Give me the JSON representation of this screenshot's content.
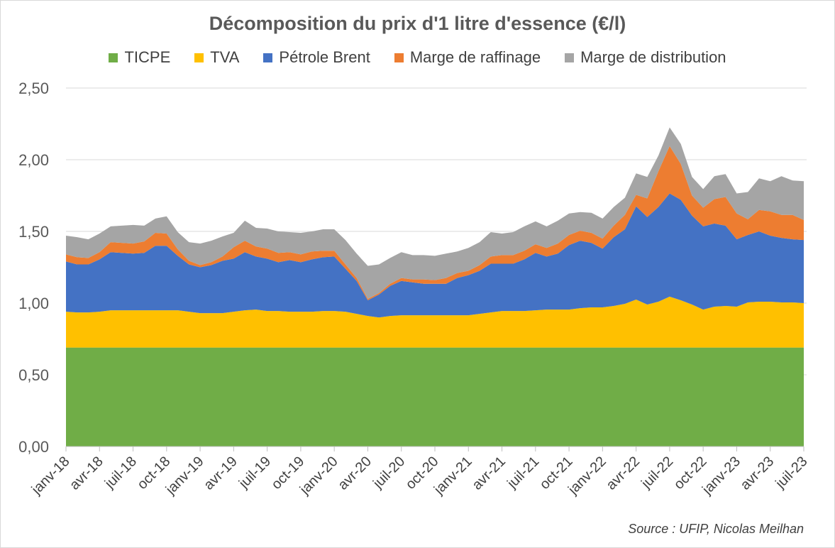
{
  "chart_data": {
    "type": "area",
    "stacked": true,
    "title": "Décomposition du prix d'1 litre d'essence (€/l)",
    "source": "Source : UFIP, Nicolas Meilhan",
    "ylim": [
      0,
      2.5
    ],
    "yticks": [
      "0,00",
      "0,50",
      "1,00",
      "1,50",
      "2,00",
      "2,50"
    ],
    "grid": true,
    "legend_position": "top",
    "x_labels": [
      "janv-18",
      "avr-18",
      "juil-18",
      "oct-18",
      "janv-19",
      "avr-19",
      "juil-19",
      "oct-19",
      "janv-20",
      "avr-20",
      "juil-20",
      "oct-20",
      "janv-21",
      "avr-21",
      "juil-21",
      "oct-21",
      "janv-22",
      "avr-22",
      "juil-22",
      "oct-22",
      "janv-23",
      "avr-23",
      "juil-23"
    ],
    "x": [
      "2018-01",
      "2018-02",
      "2018-03",
      "2018-04",
      "2018-05",
      "2018-06",
      "2018-07",
      "2018-08",
      "2018-09",
      "2018-10",
      "2018-11",
      "2018-12",
      "2019-01",
      "2019-02",
      "2019-03",
      "2019-04",
      "2019-05",
      "2019-06",
      "2019-07",
      "2019-08",
      "2019-09",
      "2019-10",
      "2019-11",
      "2019-12",
      "2020-01",
      "2020-02",
      "2020-03",
      "2020-04",
      "2020-05",
      "2020-06",
      "2020-07",
      "2020-08",
      "2020-09",
      "2020-10",
      "2020-11",
      "2020-12",
      "2021-01",
      "2021-02",
      "2021-03",
      "2021-04",
      "2021-05",
      "2021-06",
      "2021-07",
      "2021-08",
      "2021-09",
      "2021-10",
      "2021-11",
      "2021-12",
      "2022-01",
      "2022-02",
      "2022-03",
      "2022-04",
      "2022-05",
      "2022-06",
      "2022-07",
      "2022-08",
      "2022-09",
      "2022-10",
      "2022-11",
      "2022-12",
      "2023-01",
      "2023-02",
      "2023-03",
      "2023-04",
      "2023-05",
      "2023-06",
      "2023-07"
    ],
    "series": [
      {
        "name": "TICPE",
        "color": "#70ad47",
        "values": [
          0.69,
          0.69,
          0.69,
          0.69,
          0.69,
          0.69,
          0.69,
          0.69,
          0.69,
          0.69,
          0.69,
          0.69,
          0.69,
          0.69,
          0.69,
          0.69,
          0.69,
          0.69,
          0.69,
          0.69,
          0.69,
          0.69,
          0.69,
          0.69,
          0.69,
          0.69,
          0.69,
          0.69,
          0.69,
          0.69,
          0.69,
          0.69,
          0.69,
          0.69,
          0.69,
          0.69,
          0.69,
          0.69,
          0.69,
          0.69,
          0.69,
          0.69,
          0.69,
          0.69,
          0.69,
          0.69,
          0.69,
          0.69,
          0.69,
          0.69,
          0.69,
          0.69,
          0.69,
          0.69,
          0.69,
          0.69,
          0.69,
          0.69,
          0.69,
          0.69,
          0.69,
          0.69,
          0.69,
          0.69,
          0.69,
          0.69,
          0.69
        ]
      },
      {
        "name": "TVA",
        "color": "#ffc000",
        "values": [
          0.25,
          0.245,
          0.245,
          0.25,
          0.26,
          0.26,
          0.26,
          0.26,
          0.26,
          0.26,
          0.26,
          0.25,
          0.24,
          0.24,
          0.24,
          0.25,
          0.26,
          0.265,
          0.255,
          0.255,
          0.25,
          0.25,
          0.25,
          0.255,
          0.255,
          0.25,
          0.235,
          0.22,
          0.21,
          0.22,
          0.225,
          0.225,
          0.225,
          0.225,
          0.225,
          0.225,
          0.225,
          0.235,
          0.245,
          0.255,
          0.255,
          0.255,
          0.26,
          0.265,
          0.265,
          0.265,
          0.275,
          0.28,
          0.28,
          0.29,
          0.305,
          0.335,
          0.3,
          0.32,
          0.355,
          0.33,
          0.3,
          0.265,
          0.285,
          0.29,
          0.285,
          0.315,
          0.32,
          0.32,
          0.315,
          0.315,
          0.31
        ]
      },
      {
        "name": "Pétrole Brent",
        "color": "#4472c4",
        "values": [
          0.35,
          0.335,
          0.335,
          0.365,
          0.405,
          0.4,
          0.395,
          0.4,
          0.45,
          0.45,
          0.38,
          0.33,
          0.32,
          0.335,
          0.365,
          0.37,
          0.405,
          0.37,
          0.365,
          0.34,
          0.36,
          0.345,
          0.365,
          0.375,
          0.38,
          0.3,
          0.23,
          0.11,
          0.16,
          0.21,
          0.24,
          0.23,
          0.22,
          0.22,
          0.22,
          0.26,
          0.28,
          0.3,
          0.34,
          0.33,
          0.33,
          0.36,
          0.4,
          0.37,
          0.39,
          0.45,
          0.47,
          0.45,
          0.41,
          0.48,
          0.52,
          0.65,
          0.61,
          0.66,
          0.72,
          0.7,
          0.62,
          0.58,
          0.58,
          0.56,
          0.47,
          0.47,
          0.49,
          0.46,
          0.45,
          0.44,
          0.44
        ]
      },
      {
        "name": "Marge de raffinage",
        "color": "#ed7d31",
        "values": [
          0.05,
          0.05,
          0.045,
          0.05,
          0.07,
          0.07,
          0.07,
          0.08,
          0.09,
          0.085,
          0.045,
          0.025,
          0.015,
          0.02,
          0.03,
          0.08,
          0.08,
          0.07,
          0.07,
          0.065,
          0.055,
          0.055,
          0.055,
          0.045,
          0.04,
          0.03,
          0.02,
          0.01,
          0.01,
          0.015,
          0.02,
          0.02,
          0.03,
          0.025,
          0.04,
          0.035,
          0.03,
          0.04,
          0.05,
          0.06,
          0.06,
          0.06,
          0.06,
          0.06,
          0.07,
          0.07,
          0.07,
          0.07,
          0.07,
          0.08,
          0.1,
          0.08,
          0.13,
          0.25,
          0.33,
          0.25,
          0.14,
          0.13,
          0.17,
          0.2,
          0.18,
          0.11,
          0.15,
          0.17,
          0.16,
          0.17,
          0.14
        ]
      },
      {
        "name": "Marge de distribution",
        "color": "#a5a5a5",
        "values": [
          0.13,
          0.14,
          0.13,
          0.13,
          0.11,
          0.12,
          0.13,
          0.11,
          0.1,
          0.12,
          0.12,
          0.13,
          0.15,
          0.15,
          0.14,
          0.1,
          0.14,
          0.13,
          0.14,
          0.15,
          0.14,
          0.15,
          0.14,
          0.15,
          0.15,
          0.17,
          0.17,
          0.23,
          0.2,
          0.18,
          0.18,
          0.17,
          0.17,
          0.17,
          0.17,
          0.15,
          0.16,
          0.16,
          0.17,
          0.15,
          0.16,
          0.17,
          0.16,
          0.15,
          0.16,
          0.15,
          0.13,
          0.14,
          0.14,
          0.13,
          0.12,
          0.15,
          0.15,
          0.11,
          0.13,
          0.14,
          0.13,
          0.13,
          0.16,
          0.16,
          0.14,
          0.19,
          0.22,
          0.21,
          0.27,
          0.24,
          0.27
        ]
      }
    ]
  }
}
